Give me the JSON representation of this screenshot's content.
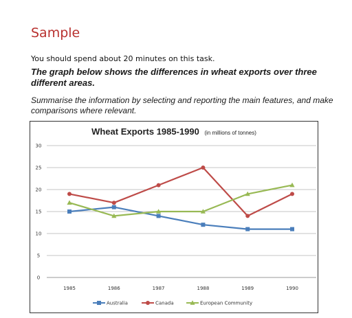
{
  "page": {
    "heading": "Sample",
    "instruction": "You should spend about 20 minutes on this task.",
    "task_bold": "The graph below shows the differences in wheat exports over three different areas.",
    "task_italic": "Summarise the information by selecting and reporting the main features, and make comparisons where relevant."
  },
  "chart_data": {
    "type": "line",
    "title": "Wheat Exports 1985-1990",
    "subtitle": "(in millions of tonnes)",
    "xlabel": "",
    "ylabel": "",
    "categories": [
      "1985",
      "1986",
      "1987",
      "1988",
      "1989",
      "1990"
    ],
    "ylim": [
      0,
      30
    ],
    "yticks": [
      0,
      5,
      10,
      15,
      20,
      25,
      30
    ],
    "grid": true,
    "legend_position": "bottom",
    "series": [
      {
        "name": "Australia",
        "values": [
          15,
          16,
          14,
          12,
          11,
          11
        ],
        "color": "#4a7ebb",
        "marker": "square"
      },
      {
        "name": "Canada",
        "values": [
          19,
          17,
          21,
          25,
          14,
          19
        ],
        "color": "#be4b48",
        "marker": "circle"
      },
      {
        "name": "European Community",
        "values": [
          17,
          14,
          15,
          15,
          19,
          21
        ],
        "color": "#98b954",
        "marker": "triangle"
      }
    ]
  }
}
